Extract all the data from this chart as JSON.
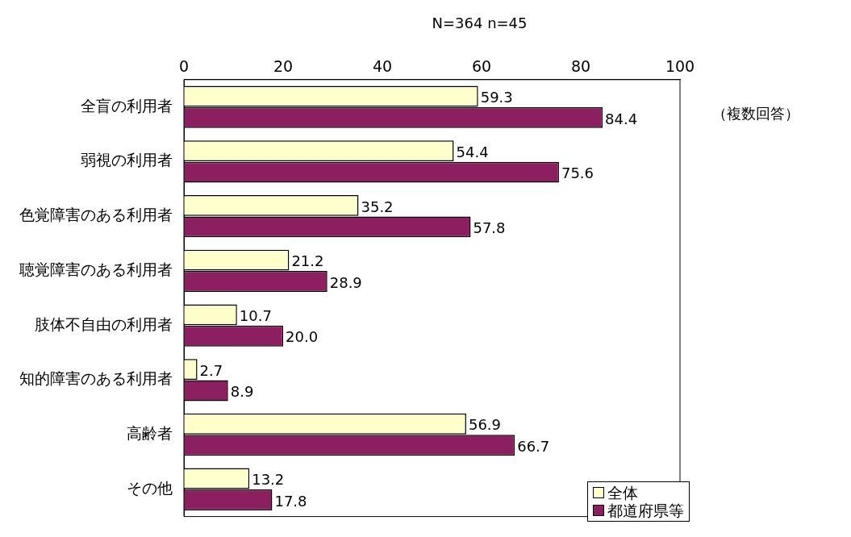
{
  "chart_data": {
    "type": "bar",
    "orientation": "horizontal",
    "categories": [
      "全盲の利用者",
      "弱視の利用者",
      "色覚障害のある利用者",
      "聴覚障害のある利用者",
      "肢体不自由の利用者",
      "知的障害のある利用者",
      "高齢者",
      "その他"
    ],
    "series": [
      {
        "name": "全体",
        "color": "#ffffcc",
        "values": [
          59.3,
          54.4,
          35.2,
          21.2,
          10.7,
          2.7,
          56.9,
          13.2
        ],
        "value_labels": [
          "59.3",
          "54.4",
          "35.2",
          "21.2",
          "10.7",
          "2.7",
          "56.9",
          "13.2"
        ]
      },
      {
        "name": "都道府県等",
        "color": "#8b1f5f",
        "values": [
          84.4,
          75.6,
          57.8,
          28.9,
          20.0,
          8.9,
          66.7,
          17.8
        ],
        "value_labels": [
          "84.4",
          "75.6",
          "57.8",
          "28.9",
          "20.0",
          "8.9",
          "66.7",
          "17.8"
        ]
      }
    ],
    "xlim": [
      0,
      100
    ],
    "xticks": [
      0,
      20,
      40,
      60,
      80,
      100
    ],
    "grid": false,
    "legend": "bottom right",
    "annotations": [
      "N=364 n=45",
      "（複数回答）"
    ]
  }
}
